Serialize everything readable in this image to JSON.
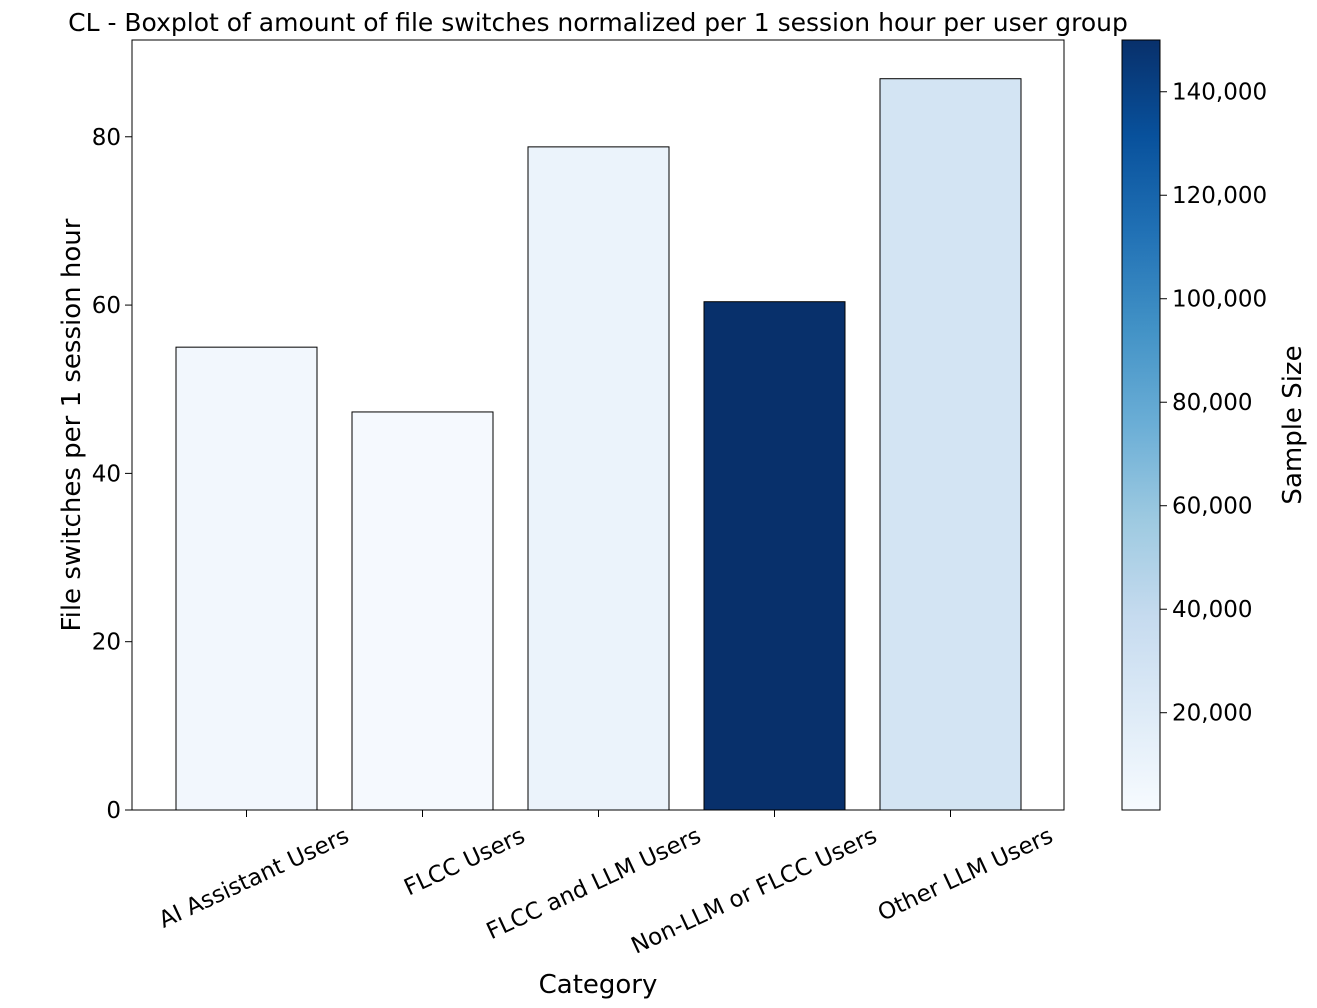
{
  "chart_data": {
    "type": "bar",
    "title": "CL - Boxplot of amount of file switches normalized per 1 session hour per user group",
    "xlabel": "Category",
    "ylabel": "File switches per 1 session hour",
    "categories": [
      "AI Assistant Users",
      "FLCC Users",
      "FLCC and LLM Users",
      "Non-LLM or FLCC Users",
      "Other LLM Users"
    ],
    "values": [
      55.0,
      47.3,
      78.8,
      60.4,
      86.9
    ],
    "sample_sizes": [
      3500,
      1200,
      8000,
      150000,
      28000
    ],
    "bar_colors": [
      "#f2f7fd",
      "#f5f9fe",
      "#ebf3fb",
      "#08306b",
      "#d3e4f3"
    ],
    "ylim": [
      0,
      91.5
    ],
    "yticks": [
      0,
      20,
      40,
      60,
      80
    ],
    "colorbar": {
      "label": "Sample Size",
      "range": [
        1200,
        150000
      ],
      "ticks": [
        20000,
        40000,
        60000,
        80000,
        100000,
        120000,
        140000
      ],
      "tick_labels": [
        "20,000",
        "40,000",
        "60,000",
        "80,000",
        "100,000",
        "120,000",
        "140,000"
      ],
      "colormap": "Blues",
      "color_stops": [
        "#f7fbff",
        "#deebf7",
        "#c6dbef",
        "#9ecae1",
        "#6baed6",
        "#4292c6",
        "#2171b5",
        "#08519c",
        "#08306b"
      ]
    }
  }
}
